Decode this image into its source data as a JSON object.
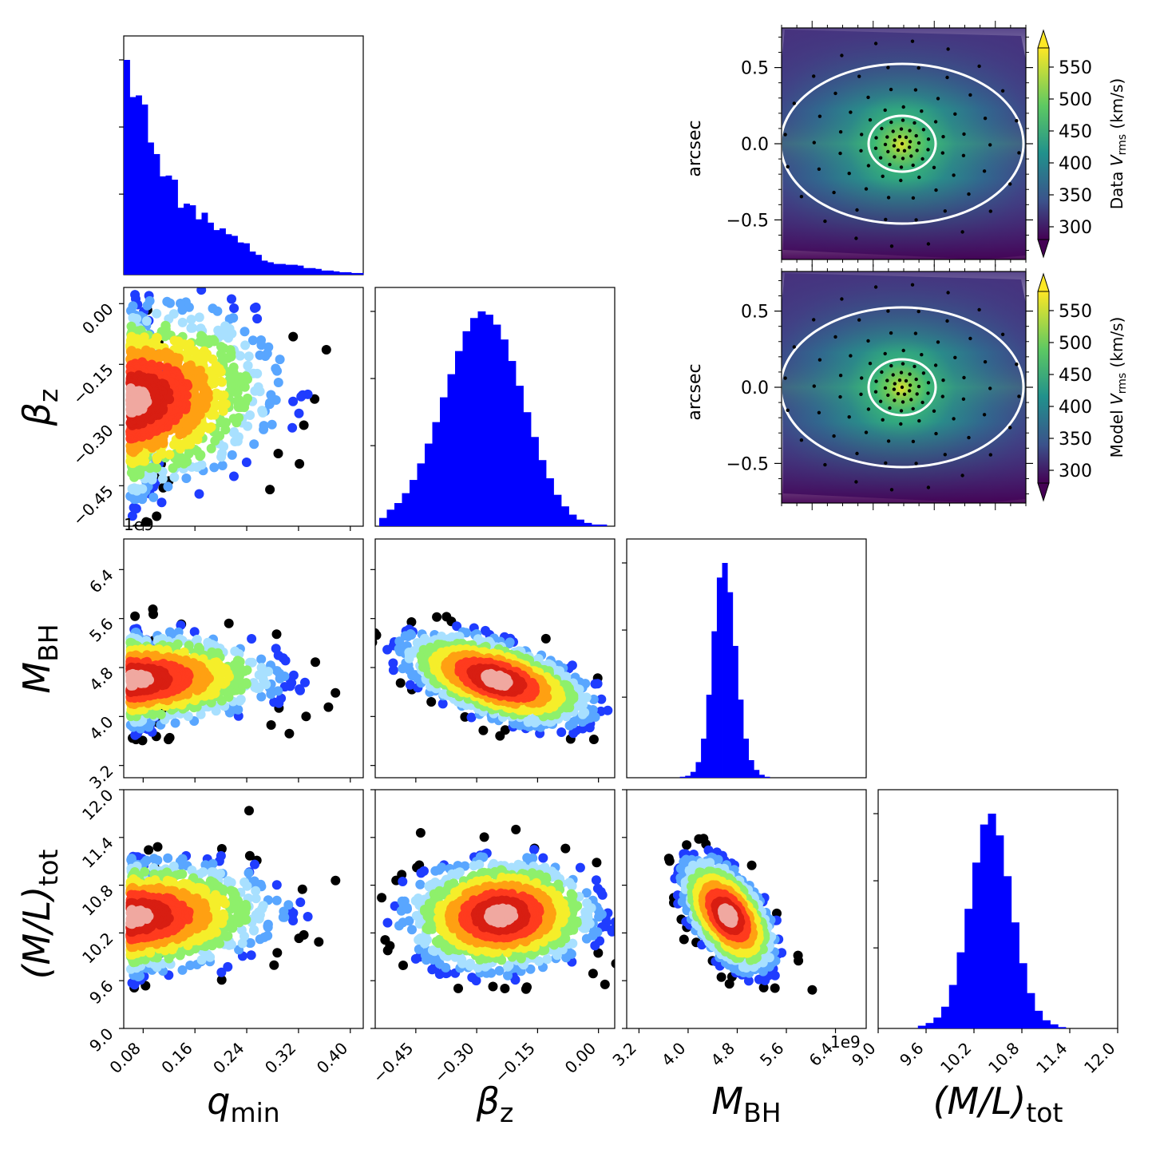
{
  "figure": {
    "type": "corner-plot",
    "offset_text_m_bh": "1e9"
  },
  "chart_data": {
    "type": "corner",
    "parameters": [
      {
        "key": "qmin",
        "label_main": "q",
        "label_sub": "min",
        "ticks": [
          0.08,
          0.16,
          0.24,
          0.32,
          0.4
        ],
        "tick_labels": [
          "0.08",
          "0.16",
          "0.24",
          "0.32",
          "0.40"
        ],
        "range": [
          0.05,
          0.42
        ]
      },
      {
        "key": "betaz",
        "label_main": "β",
        "label_sub": "z",
        "ticks": [
          -0.45,
          -0.3,
          -0.15,
          0.0
        ],
        "tick_labels": [
          "−0.45",
          "−0.30",
          "−0.15",
          "0.00"
        ],
        "range": [
          -0.55,
          0.04
        ]
      },
      {
        "key": "mbh",
        "label_main": "M",
        "label_sub": "BH",
        "ticks": [
          3.2,
          4.0,
          4.8,
          5.6,
          6.4
        ],
        "tick_labels": [
          "3.2",
          "4.0",
          "4.8",
          "5.6",
          "6.4"
        ],
        "range": [
          3.0,
          6.9
        ]
      },
      {
        "key": "ml",
        "label_main": "(M/L)",
        "label_sub": "tot",
        "ticks": [
          9.0,
          9.6,
          10.2,
          10.8,
          11.4,
          12.0
        ],
        "tick_labels": [
          "9.0",
          "9.6",
          "10.2",
          "10.8",
          "11.4",
          "12.0"
        ],
        "range": [
          9.0,
          12.0
        ]
      }
    ],
    "histograms": {
      "qmin": [
        0.26,
        0.215,
        0.217,
        0.206,
        0.16,
        0.146,
        0.119,
        0.12,
        0.115,
        0.081,
        0.086,
        0.084,
        0.067,
        0.075,
        0.063,
        0.054,
        0.056,
        0.049,
        0.047,
        0.039,
        0.038,
        0.028,
        0.024,
        0.017,
        0.015,
        0.013,
        0.013,
        0.012,
        0.012,
        0.011,
        0.008,
        0.008,
        0.007,
        0.005,
        0.005,
        0.004,
        0.003,
        0.003,
        0.002,
        0.002
      ],
      "betaz": [
        0.005,
        0.01,
        0.014,
        0.02,
        0.028,
        0.038,
        0.05,
        0.063,
        0.078,
        0.092,
        0.106,
        0.118,
        0.126,
        0.13,
        0.128,
        0.122,
        0.113,
        0.1,
        0.085,
        0.069,
        0.054,
        0.04,
        0.029,
        0.019,
        0.012,
        0.007,
        0.004,
        0.002,
        0.001,
        0.001
      ],
      "mbh": [
        0.0,
        0.001,
        0.002,
        0.006,
        0.016,
        0.04,
        0.085,
        0.15,
        0.205,
        0.22,
        0.19,
        0.135,
        0.08,
        0.04,
        0.018,
        0.008,
        0.003,
        0.001,
        0.0,
        0.0
      ],
      "ml": [
        0.0,
        0.002,
        0.004,
        0.008,
        0.016,
        0.032,
        0.056,
        0.088,
        0.122,
        0.15,
        0.158,
        0.142,
        0.112,
        0.078,
        0.048,
        0.026,
        0.013,
        0.006,
        0.003,
        0.001
      ]
    },
    "scatter_clouds": [
      {
        "x": "qmin",
        "y": "betaz",
        "cx": 0.06,
        "cy": -0.24,
        "sx": 0.06,
        "sy": 0.1,
        "rho": 0.15,
        "n": 1700
      },
      {
        "x": "qmin",
        "y": "mbh",
        "cx": 0.06,
        "cy": 4.6,
        "sx": 0.06,
        "sy": 0.32,
        "rho": 0.1,
        "n": 1700
      },
      {
        "x": "betaz",
        "y": "mbh",
        "cx": -0.25,
        "cy": 4.6,
        "sx": 0.1,
        "sy": 0.32,
        "rho": -0.55,
        "n": 1700
      },
      {
        "x": "qmin",
        "y": "ml",
        "cx": 0.06,
        "cy": 10.4,
        "sx": 0.06,
        "sy": 0.3,
        "rho": 0.1,
        "n": 1700
      },
      {
        "x": "betaz",
        "y": "ml",
        "cx": -0.24,
        "cy": 10.42,
        "sx": 0.1,
        "sy": 0.3,
        "rho": 0.05,
        "n": 1700
      },
      {
        "x": "mbh",
        "y": "ml",
        "cx": 4.65,
        "cy": 10.42,
        "sx": 0.32,
        "sy": 0.3,
        "rho": -0.55,
        "n": 1700
      }
    ],
    "color_scale": [
      "#000000",
      "#1f3cff",
      "#59a6ff",
      "#a8e0ff",
      "#8ef06b",
      "#f5ee2a",
      "#ffa012",
      "#ff3b1e",
      "#d81e12",
      "#f0a8a0",
      "#f2e6e6"
    ],
    "vrms_maps": [
      {
        "name": "data",
        "colorbar_label_pre": "Data",
        "colorbar_label_var": "V",
        "colorbar_label_sub": "rms",
        "colorbar_label_post": " (km/s)",
        "ylabel": "arcsec",
        "yticks": [
          0.5,
          0.0,
          -0.5
        ],
        "ytick_labels": [
          "0.5",
          "0.0",
          "−0.5"
        ]
      },
      {
        "name": "model",
        "colorbar_label_pre": "Model",
        "colorbar_label_var": "V",
        "colorbar_label_sub": "rms",
        "colorbar_label_post": " (km/s)",
        "ylabel": "arcsec",
        "yticks": [
          0.5,
          0.0,
          -0.5
        ],
        "ytick_labels": [
          "0.5",
          "0.0",
          "−0.5"
        ]
      }
    ],
    "colorbar": {
      "ticks": [
        300,
        350,
        400,
        450,
        500,
        550
      ],
      "tick_labels": [
        "300",
        "350",
        "400",
        "450",
        "500",
        "550"
      ],
      "range": [
        280,
        580
      ],
      "colormap": "viridis",
      "extend": "both"
    }
  }
}
